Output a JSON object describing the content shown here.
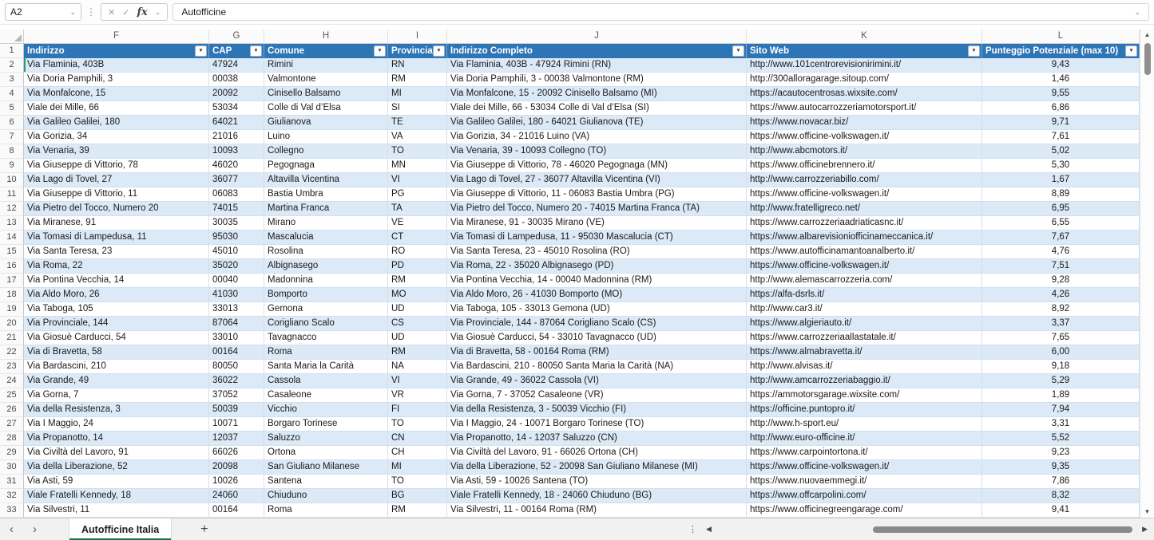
{
  "colors": {
    "header_blue": "#2E75B6",
    "band_blue": "#DCE9F6",
    "tab_green": "#1E7145",
    "active_marker_green": "#21A366"
  },
  "icons": {
    "cancel": "✕",
    "enter": "✓",
    "fx": "fx",
    "chevron_down": "⌄",
    "filter": "▼",
    "more": "⋮",
    "prev": "‹",
    "next": "›",
    "add": "+",
    "left": "◀",
    "right": "▶",
    "up": "▲",
    "down": "▼"
  },
  "formula_bar": {
    "name_box": "A2",
    "formula": "Autofficine"
  },
  "columns": {
    "letters": [
      "F",
      "G",
      "H",
      "I",
      "J",
      "K",
      "L"
    ]
  },
  "table": {
    "header_row_number": "1",
    "headers": {
      "indirizzo": "Indirizzo",
      "cap": "CAP",
      "comune": "Comune",
      "provincia": "Provincia",
      "completo": "Indirizzo Completo",
      "sito": "Sito Web",
      "punteggio": "Punteggio Potenziale (max 10)"
    },
    "rows": [
      {
        "n": "2",
        "indirizzo": "Via Flaminia, 403B",
        "cap": "47924",
        "comune": "Rimini",
        "provincia": "RN",
        "completo": "Via Flaminia, 403B - 47924 Rimini (RN)",
        "sito": "http://www.101centrorevisionirimini.it/",
        "punteggio": "9,43"
      },
      {
        "n": "3",
        "indirizzo": "Via Doria Pamphili, 3",
        "cap": "00038",
        "comune": "Valmontone",
        "provincia": "RM",
        "completo": "Via Doria Pamphili, 3 - 00038 Valmontone (RM)",
        "sito": "http://300alloragarage.sitoup.com/",
        "punteggio": "1,46"
      },
      {
        "n": "4",
        "indirizzo": "Via Monfalcone, 15",
        "cap": "20092",
        "comune": "Cinisello Balsamo",
        "provincia": "MI",
        "completo": "Via Monfalcone, 15 - 20092 Cinisello Balsamo (MI)",
        "sito": "https://acautocentrosas.wixsite.com/",
        "punteggio": "9,55"
      },
      {
        "n": "5",
        "indirizzo": "Viale dei Mille, 66",
        "cap": "53034",
        "comune": "Colle di Val d’Elsa",
        "provincia": "SI",
        "completo": "Viale dei Mille, 66 - 53034 Colle di Val d’Elsa (SI)",
        "sito": "https://www.autocarrozzeriamotorsport.it/",
        "punteggio": "6,86"
      },
      {
        "n": "6",
        "indirizzo": "Via Galileo Galilei, 180",
        "cap": "64021",
        "comune": "Giulianova",
        "provincia": "TE",
        "completo": "Via Galileo Galilei, 180 - 64021 Giulianova (TE)",
        "sito": "https://www.novacar.biz/",
        "punteggio": "9,71"
      },
      {
        "n": "7",
        "indirizzo": "Via Gorizia, 34",
        "cap": "21016",
        "comune": "Luino",
        "provincia": "VA",
        "completo": "Via Gorizia, 34 - 21016 Luino (VA)",
        "sito": "https://www.officine-volkswagen.it/",
        "punteggio": "7,61"
      },
      {
        "n": "8",
        "indirizzo": "Via Venaria, 39",
        "cap": "10093",
        "comune": "Collegno",
        "provincia": "TO",
        "completo": "Via Venaria, 39 - 10093 Collegno (TO)",
        "sito": "http://www.abcmotors.it/",
        "punteggio": "5,02"
      },
      {
        "n": "9",
        "indirizzo": "Via Giuseppe di Vittorio, 78",
        "cap": "46020",
        "comune": "Pegognaga",
        "provincia": "MN",
        "completo": "Via Giuseppe di Vittorio, 78 - 46020 Pegognaga (MN)",
        "sito": "https://www.officinebrennero.it/",
        "punteggio": "5,30"
      },
      {
        "n": "10",
        "indirizzo": "Via Lago di Tovel, 27",
        "cap": "36077",
        "comune": "Altavilla Vicentina",
        "provincia": "VI",
        "completo": "Via Lago di Tovel, 27 - 36077 Altavilla Vicentina (VI)",
        "sito": "http://www.carrozzeriabillo.com/",
        "punteggio": "1,67"
      },
      {
        "n": "11",
        "indirizzo": "Via Giuseppe di Vittorio, 11",
        "cap": "06083",
        "comune": "Bastia Umbra",
        "provincia": "PG",
        "completo": "Via Giuseppe di Vittorio, 11 - 06083 Bastia Umbra (PG)",
        "sito": "https://www.officine-volkswagen.it/",
        "punteggio": "8,89"
      },
      {
        "n": "12",
        "indirizzo": "Via Pietro del Tocco, Numero 20",
        "cap": "74015",
        "comune": "Martina Franca",
        "provincia": "TA",
        "completo": "Via Pietro del Tocco, Numero 20 - 74015 Martina Franca (TA)",
        "sito": "http://www.fratelligreco.net/",
        "punteggio": "6,95"
      },
      {
        "n": "13",
        "indirizzo": "Via Miranese, 91",
        "cap": "30035",
        "comune": "Mirano",
        "provincia": "VE",
        "completo": "Via Miranese, 91 - 30035 Mirano (VE)",
        "sito": "https://www.carrozzeriaadriaticasnc.it/",
        "punteggio": "6,55"
      },
      {
        "n": "14",
        "indirizzo": "Via Tomasi di Lampedusa, 11",
        "cap": "95030",
        "comune": "Mascalucia",
        "provincia": "CT",
        "completo": "Via Tomasi di Lampedusa, 11 - 95030 Mascalucia (CT)",
        "sito": "https://www.albarevisioniofficinameccanica.it/",
        "punteggio": "7,67"
      },
      {
        "n": "15",
        "indirizzo": "Via Santa Teresa, 23",
        "cap": "45010",
        "comune": "Rosolina",
        "provincia": "RO",
        "completo": "Via Santa Teresa, 23 - 45010 Rosolina (RO)",
        "sito": "https://www.autofficinamantoanalberto.it/",
        "punteggio": "4,76"
      },
      {
        "n": "16",
        "indirizzo": "Via Roma, 22",
        "cap": "35020",
        "comune": "Albignasego",
        "provincia": "PD",
        "completo": "Via Roma, 22 - 35020 Albignasego (PD)",
        "sito": "https://www.officine-volkswagen.it/",
        "punteggio": "7,51"
      },
      {
        "n": "17",
        "indirizzo": "Via Pontina Vecchia, 14",
        "cap": "00040",
        "comune": "Madonnina",
        "provincia": "RM",
        "completo": "Via Pontina Vecchia, 14 - 00040 Madonnina (RM)",
        "sito": "http://www.alemascarrozzeria.com/",
        "punteggio": "9,28"
      },
      {
        "n": "18",
        "indirizzo": "Via Aldo Moro, 26",
        "cap": "41030",
        "comune": "Bomporto",
        "provincia": "MO",
        "completo": "Via Aldo Moro, 26 - 41030 Bomporto (MO)",
        "sito": "https://alfa-dsrls.it/",
        "punteggio": "4,26"
      },
      {
        "n": "19",
        "indirizzo": "Via Taboga, 105",
        "cap": "33013",
        "comune": "Gemona",
        "provincia": "UD",
        "completo": "Via Taboga, 105 - 33013 Gemona (UD)",
        "sito": "http://www.car3.it/",
        "punteggio": "8,92"
      },
      {
        "n": "20",
        "indirizzo": "Via Provinciale, 144",
        "cap": "87064",
        "comune": "Corigliano Scalo",
        "provincia": "CS",
        "completo": "Via Provinciale, 144 - 87064 Corigliano Scalo (CS)",
        "sito": "https://www.algieriauto.it/",
        "punteggio": "3,37"
      },
      {
        "n": "21",
        "indirizzo": "Via Giosuè Carducci, 54",
        "cap": "33010",
        "comune": "Tavagnacco",
        "provincia": "UD",
        "completo": "Via Giosuè Carducci, 54 - 33010 Tavagnacco (UD)",
        "sito": "https://www.carrozzeriaallastatale.it/",
        "punteggio": "7,65"
      },
      {
        "n": "22",
        "indirizzo": "Via di Bravetta, 58",
        "cap": "00164",
        "comune": "Roma",
        "provincia": "RM",
        "completo": "Via di Bravetta, 58 - 00164 Roma (RM)",
        "sito": "https://www.almabravetta.it/",
        "punteggio": "6,00"
      },
      {
        "n": "23",
        "indirizzo": "Via Bardascini, 210",
        "cap": "80050",
        "comune": "Santa Maria la Carità",
        "provincia": "NA",
        "completo": "Via Bardascini, 210 - 80050 Santa Maria la Carità (NA)",
        "sito": "http://www.alvisas.it/",
        "punteggio": "9,18"
      },
      {
        "n": "24",
        "indirizzo": "Via Grande, 49",
        "cap": "36022",
        "comune": "Cassola",
        "provincia": "VI",
        "completo": "Via Grande, 49 - 36022 Cassola (VI)",
        "sito": "http://www.amcarrozzeriabaggio.it/",
        "punteggio": "5,29"
      },
      {
        "n": "25",
        "indirizzo": "Via Gorna, 7",
        "cap": "37052",
        "comune": "Casaleone",
        "provincia": "VR",
        "completo": "Via Gorna, 7 - 37052 Casaleone (VR)",
        "sito": "https://ammotorsgarage.wixsite.com/",
        "punteggio": "1,89"
      },
      {
        "n": "26",
        "indirizzo": "Via della Resistenza, 3",
        "cap": "50039",
        "comune": "Vicchio",
        "provincia": "FI",
        "completo": "Via della Resistenza, 3 - 50039 Vicchio (FI)",
        "sito": "https://officine.puntopro.it/",
        "punteggio": "7,94"
      },
      {
        "n": "27",
        "indirizzo": "Via I Maggio, 24",
        "cap": "10071",
        "comune": "Borgaro Torinese",
        "provincia": "TO",
        "completo": "Via I Maggio, 24 - 10071 Borgaro Torinese (TO)",
        "sito": "http://www.h-sport.eu/",
        "punteggio": "3,31"
      },
      {
        "n": "28",
        "indirizzo": "Via Propanotto, 14",
        "cap": "12037",
        "comune": "Saluzzo",
        "provincia": "CN",
        "completo": "Via Propanotto, 14 - 12037 Saluzzo (CN)",
        "sito": "http://www.euro-officine.it/",
        "punteggio": "5,52"
      },
      {
        "n": "29",
        "indirizzo": "Via Civiltà del Lavoro, 91",
        "cap": "66026",
        "comune": "Ortona",
        "provincia": "CH",
        "completo": "Via Civiltà del Lavoro, 91 - 66026 Ortona (CH)",
        "sito": "https://www.carpointortona.it/",
        "punteggio": "9,23"
      },
      {
        "n": "30",
        "indirizzo": "Via della Liberazione, 52",
        "cap": "20098",
        "comune": "San Giuliano Milanese",
        "provincia": "MI",
        "completo": "Via della Liberazione, 52 - 20098 San Giuliano Milanese (MI)",
        "sito": "https://www.officine-volkswagen.it/",
        "punteggio": "9,35"
      },
      {
        "n": "31",
        "indirizzo": "Via Asti, 59",
        "cap": "10026",
        "comune": "Santena",
        "provincia": "TO",
        "completo": "Via Asti, 59 - 10026 Santena (TO)",
        "sito": "https://www.nuovaemmegi.it/",
        "punteggio": "7,86"
      },
      {
        "n": "32",
        "indirizzo": "Viale Fratelli Kennedy, 18",
        "cap": "24060",
        "comune": "Chiuduno",
        "provincia": "BG",
        "completo": "Viale Fratelli Kennedy, 18 - 24060 Chiuduno (BG)",
        "sito": "https://www.offcarpolini.com/",
        "punteggio": "8,32"
      },
      {
        "n": "33",
        "indirizzo": "Via Silvestri, 11",
        "cap": "00164",
        "comune": "Roma",
        "provincia": "RM",
        "completo": "Via Silvestri, 11 - 00164 Roma (RM)",
        "sito": "https://www.officinegreengarage.com/",
        "punteggio": "9,41"
      }
    ]
  },
  "sheet_bar": {
    "tab_label": "Autofficine Italia"
  }
}
